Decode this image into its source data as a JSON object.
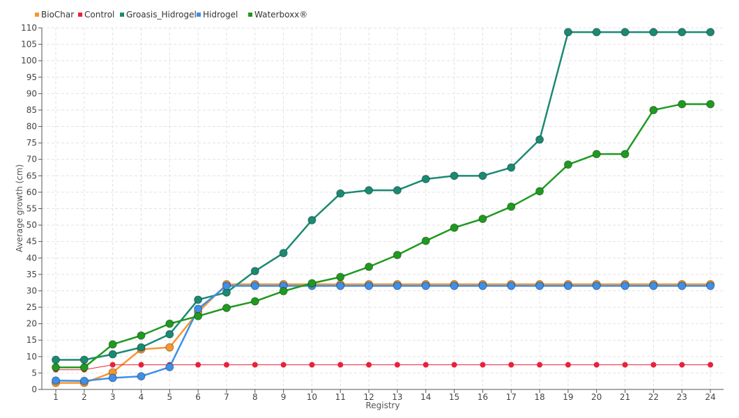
{
  "chart_data": {
    "type": "line",
    "title": "",
    "xlabel": "Registry",
    "ylabel": "Average growth (cm)",
    "categories": [
      "1",
      "2",
      "3",
      "4",
      "5",
      "6",
      "7",
      "8",
      "9",
      "10",
      "11",
      "12",
      "13",
      "14",
      "15",
      "16",
      "17",
      "18",
      "19",
      "20",
      "21",
      "22",
      "23",
      "24"
    ],
    "ylim": [
      0,
      110
    ],
    "y_ticks": [
      0,
      5,
      10,
      15,
      20,
      25,
      30,
      35,
      40,
      45,
      50,
      55,
      60,
      65,
      70,
      75,
      80,
      85,
      90,
      95,
      100,
      105,
      110
    ],
    "grid": true,
    "legend_position": "top-left",
    "series": [
      {
        "name": "BioChar",
        "color": "#f7962f",
        "values": [
          2,
          2,
          5.2,
          12.2,
          12.8,
          23.5,
          32,
          32,
          32,
          32,
          32,
          32,
          32,
          32,
          32,
          32,
          32,
          32,
          32,
          32,
          32,
          32,
          32,
          32
        ]
      },
      {
        "name": "Control",
        "color": "#e8213a",
        "values": [
          6,
          6,
          7.5,
          7.5,
          7.5,
          7.5,
          7.5,
          7.5,
          7.5,
          7.5,
          7.5,
          7.5,
          7.5,
          7.5,
          7.5,
          7.5,
          7.5,
          7.5,
          7.5,
          7.5,
          7.5,
          7.5,
          7.5,
          7.5
        ]
      },
      {
        "name": "Groasis_Hidrogel",
        "color": "#1a8a72",
        "values": [
          9,
          9,
          10.7,
          12.8,
          16.8,
          27.3,
          29.5,
          36,
          41.5,
          51.5,
          59.6,
          60.6,
          60.6,
          64,
          65,
          65,
          67.5,
          76,
          108.7,
          108.7,
          108.7,
          108.7,
          108.7,
          108.7
        ]
      },
      {
        "name": "Hidrogel",
        "color": "#3d8fe8",
        "values": [
          2.7,
          2.6,
          3.5,
          4,
          6.8,
          24.5,
          31.5,
          31.5,
          31.5,
          31.5,
          31.5,
          31.5,
          31.5,
          31.5,
          31.5,
          31.5,
          31.5,
          31.5,
          31.5,
          31.5,
          31.5,
          31.5,
          31.5,
          31.5
        ]
      },
      {
        "name": "Waterboxx®",
        "color": "#1f9a1f",
        "values": [
          6.7,
          6.7,
          13.7,
          16.4,
          20,
          22.3,
          24.8,
          26.8,
          29.9,
          32.3,
          34.2,
          37.3,
          40.9,
          45.2,
          49.2,
          51.9,
          55.6,
          60.3,
          68.4,
          71.6,
          71.6,
          85,
          86.8,
          86.8
        ]
      }
    ]
  }
}
